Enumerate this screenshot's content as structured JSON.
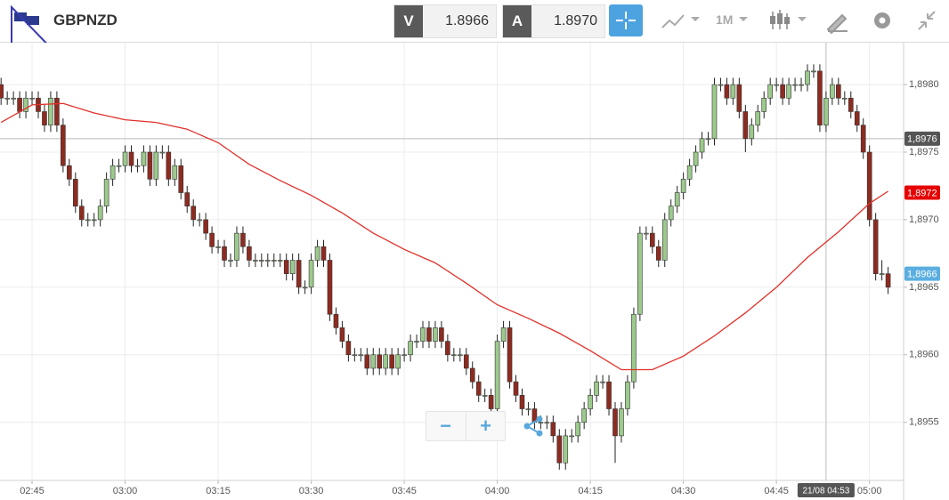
{
  "toolbar": {
    "symbol": "GBPNZD",
    "bid_label": "V",
    "bid": "1.8966",
    "ask_label": "A",
    "ask": "1.8970",
    "timeframe": "1M"
  },
  "zoom_controls": [
    "−",
    "+"
  ],
  "chart_data": {
    "type": "candlestick",
    "x": [
      160,
      161,
      162,
      163,
      164,
      165,
      166,
      167,
      168,
      169,
      170,
      171,
      172,
      173,
      174,
      175,
      176,
      177,
      178,
      179,
      180,
      181,
      182,
      183,
      184,
      185,
      186,
      187,
      188,
      189,
      190,
      191,
      192,
      193,
      194,
      195,
      196,
      197,
      198,
      199,
      200,
      201,
      202,
      203,
      204,
      205,
      206,
      207,
      208,
      209,
      210,
      211,
      212,
      213,
      214,
      215,
      216,
      217,
      218,
      219,
      220,
      221,
      222,
      223,
      224,
      225,
      226,
      227,
      228,
      229,
      230,
      231,
      232,
      233,
      234,
      235,
      236,
      237,
      238,
      239,
      240,
      241,
      242,
      243,
      244,
      245,
      246,
      247,
      248,
      249,
      250,
      251,
      252,
      253,
      254,
      255,
      256,
      257,
      258,
      259,
      260,
      261,
      262,
      263,
      264,
      265,
      266,
      267,
      268,
      269,
      270,
      271,
      272,
      273,
      274,
      275,
      276,
      277,
      278,
      279,
      280,
      281,
      282,
      283,
      284,
      285,
      286,
      287,
      288,
      289,
      290,
      291,
      292,
      293,
      294,
      295,
      296,
      297,
      298,
      299,
      300,
      301,
      302,
      303
    ],
    "open": [
      1.898,
      1.8979,
      1.8979,
      1.8979,
      1.8978,
      1.8979,
      1.8979,
      1.8978,
      1.8977,
      1.8979,
      1.8977,
      1.8974,
      1.8973,
      1.8971,
      1.897,
      1.897,
      1.897,
      1.8971,
      1.8973,
      1.8974,
      1.8974,
      1.8975,
      1.8974,
      1.8974,
      1.8975,
      1.8973,
      1.8975,
      1.8975,
      1.8973,
      1.8974,
      1.8972,
      1.8971,
      1.897,
      1.897,
      1.8969,
      1.8968,
      1.8968,
      1.8967,
      1.8967,
      1.8969,
      1.8968,
      1.8967,
      1.8967,
      1.8967,
      1.8967,
      1.8967,
      1.8967,
      1.8966,
      1.8967,
      1.8965,
      1.8965,
      1.8967,
      1.8968,
      1.8967,
      1.8963,
      1.8962,
      1.8961,
      1.896,
      1.896,
      1.896,
      1.8959,
      1.896,
      1.8959,
      1.896,
      1.8959,
      1.896,
      1.896,
      1.8961,
      1.8961,
      1.8962,
      1.8961,
      1.8962,
      1.8961,
      1.896,
      1.896,
      1.896,
      1.8959,
      1.8958,
      1.8957,
      1.8957,
      1.8956,
      1.8961,
      1.8962,
      1.8958,
      1.8957,
      1.8956,
      1.8956,
      1.8955,
      1.8955,
      1.8955,
      1.8954,
      1.8952,
      1.8954,
      1.8954,
      1.8955,
      1.8956,
      1.8957,
      1.8958,
      1.8958,
      1.8956,
      1.8954,
      1.8956,
      1.8958,
      1.8963,
      1.8969,
      1.8969,
      1.8968,
      1.8967,
      1.897,
      1.8971,
      1.8972,
      1.8973,
      1.8974,
      1.8975,
      1.8976,
      1.8976,
      1.898,
      1.898,
      1.8979,
      1.898,
      1.8978,
      1.8976,
      1.8977,
      1.8978,
      1.8979,
      1.898,
      1.898,
      1.8979,
      1.898,
      1.898,
      1.898,
      1.8981,
      1.8981,
      1.8977,
      1.8979,
      1.898,
      1.8979,
      1.8979,
      1.8978,
      1.8977,
      1.8975,
      1.897,
      1.8966,
      1.8966
    ],
    "high": [
      1.89805,
      1.89795,
      1.89795,
      1.89795,
      1.89795,
      1.89795,
      1.89795,
      1.89785,
      1.89795,
      1.89795,
      1.89775,
      1.89745,
      1.89735,
      1.89715,
      1.89705,
      1.89705,
      1.89715,
      1.89735,
      1.89745,
      1.89745,
      1.89755,
      1.89755,
      1.89745,
      1.89755,
      1.89755,
      1.89755,
      1.89755,
      1.89755,
      1.89745,
      1.89745,
      1.89725,
      1.89715,
      1.89705,
      1.89705,
      1.89695,
      1.89685,
      1.89685,
      1.89675,
      1.89695,
      1.89695,
      1.89685,
      1.89675,
      1.89675,
      1.89675,
      1.89675,
      1.89675,
      1.89675,
      1.89675,
      1.89675,
      1.89655,
      1.89675,
      1.89685,
      1.89685,
      1.89675,
      1.89635,
      1.89625,
      1.89615,
      1.89605,
      1.89605,
      1.89605,
      1.89605,
      1.89605,
      1.89605,
      1.89605,
      1.89605,
      1.89605,
      1.89615,
      1.89615,
      1.89625,
      1.89625,
      1.89625,
      1.89625,
      1.89615,
      1.89605,
      1.89605,
      1.89605,
      1.89595,
      1.89585,
      1.89575,
      1.89575,
      1.89615,
      1.89625,
      1.89625,
      1.89585,
      1.89575,
      1.89565,
      1.89565,
      1.89555,
      1.89555,
      1.89555,
      1.89545,
      1.89545,
      1.89545,
      1.89555,
      1.89565,
      1.89575,
      1.89585,
      1.89585,
      1.89585,
      1.89565,
      1.89565,
      1.89585,
      1.89635,
      1.89695,
      1.89695,
      1.89695,
      1.89685,
      1.89705,
      1.89715,
      1.89725,
      1.89735,
      1.89745,
      1.89755,
      1.89765,
      1.89765,
      1.89805,
      1.89805,
      1.89805,
      1.89805,
      1.89805,
      1.89785,
      1.89775,
      1.89785,
      1.89795,
      1.89805,
      1.89805,
      1.89805,
      1.89805,
      1.89805,
      1.89805,
      1.89815,
      1.89815,
      1.89815,
      1.89795,
      1.89805,
      1.89805,
      1.89795,
      1.89795,
      1.89785,
      1.89775,
      1.89755,
      1.89705,
      1.8967,
      1.89665
    ],
    "low": [
      1.89785,
      1.89785,
      1.89785,
      1.89775,
      1.89775,
      1.89785,
      1.89775,
      1.89765,
      1.89765,
      1.89765,
      1.89735,
      1.89725,
      1.89705,
      1.89695,
      1.89695,
      1.89695,
      1.89695,
      1.89705,
      1.89725,
      1.89735,
      1.89735,
      1.89735,
      1.89735,
      1.89735,
      1.89725,
      1.89725,
      1.89745,
      1.89725,
      1.89725,
      1.89715,
      1.89705,
      1.89695,
      1.89695,
      1.89685,
      1.89675,
      1.89675,
      1.89665,
      1.89665,
      1.89665,
      1.89675,
      1.89665,
      1.89665,
      1.89665,
      1.89665,
      1.89665,
      1.89665,
      1.89655,
      1.89655,
      1.89645,
      1.89645,
      1.89645,
      1.89665,
      1.89665,
      1.89625,
      1.89615,
      1.89605,
      1.89595,
      1.89595,
      1.89595,
      1.89585,
      1.89585,
      1.89585,
      1.89585,
      1.89585,
      1.89585,
      1.89595,
      1.89595,
      1.89605,
      1.89605,
      1.89605,
      1.89605,
      1.89605,
      1.89595,
      1.89595,
      1.89595,
      1.89585,
      1.89575,
      1.89565,
      1.89565,
      1.89555,
      1.89555,
      1.89605,
      1.89575,
      1.89565,
      1.89555,
      1.89555,
      1.89545,
      1.89545,
      1.89545,
      1.89535,
      1.89515,
      1.89515,
      1.89535,
      1.89535,
      1.89545,
      1.89555,
      1.89565,
      1.89575,
      1.89555,
      1.8952,
      1.89535,
      1.89555,
      1.89575,
      1.89625,
      1.89685,
      1.89675,
      1.89665,
      1.89665,
      1.89695,
      1.89705,
      1.89715,
      1.89725,
      1.89735,
      1.89745,
      1.89755,
      1.89755,
      1.89795,
      1.89785,
      1.89785,
      1.89775,
      1.8975,
      1.89755,
      1.89765,
      1.89775,
      1.89785,
      1.89795,
      1.89785,
      1.89785,
      1.89795,
      1.89795,
      1.89795,
      1.89805,
      1.89765,
      1.89765,
      1.89785,
      1.89785,
      1.89785,
      1.89775,
      1.89765,
      1.89745,
      1.89695,
      1.89655,
      1.89655,
      1.89645
    ],
    "close": [
      1.8979,
      1.8979,
      1.8979,
      1.8978,
      1.8979,
      1.8979,
      1.8978,
      1.8977,
      1.8979,
      1.8977,
      1.8974,
      1.8973,
      1.8971,
      1.897,
      1.897,
      1.897,
      1.8971,
      1.8973,
      1.8974,
      1.8974,
      1.8975,
      1.8974,
      1.8974,
      1.8975,
      1.8973,
      1.8975,
      1.8975,
      1.8973,
      1.8974,
      1.8972,
      1.8971,
      1.897,
      1.897,
      1.8969,
      1.8968,
      1.8968,
      1.8967,
      1.8967,
      1.8969,
      1.8968,
      1.8967,
      1.8967,
      1.8967,
      1.8967,
      1.8967,
      1.8967,
      1.8966,
      1.8967,
      1.8965,
      1.8965,
      1.8967,
      1.8968,
      1.8967,
      1.8963,
      1.8962,
      1.8961,
      1.896,
      1.896,
      1.896,
      1.8959,
      1.896,
      1.8959,
      1.896,
      1.8959,
      1.896,
      1.896,
      1.8961,
      1.8961,
      1.8962,
      1.8961,
      1.8962,
      1.8961,
      1.896,
      1.896,
      1.896,
      1.8959,
      1.8958,
      1.8957,
      1.8957,
      1.8956,
      1.8961,
      1.8962,
      1.8958,
      1.8957,
      1.8956,
      1.8956,
      1.8955,
      1.8955,
      1.8955,
      1.8954,
      1.8952,
      1.8954,
      1.8954,
      1.8955,
      1.8956,
      1.8957,
      1.8958,
      1.8958,
      1.8956,
      1.8954,
      1.8956,
      1.8958,
      1.8963,
      1.8969,
      1.8969,
      1.8968,
      1.8967,
      1.897,
      1.8971,
      1.8972,
      1.8973,
      1.8974,
      1.8975,
      1.8976,
      1.8976,
      1.898,
      1.898,
      1.8979,
      1.898,
      1.8978,
      1.8976,
      1.8977,
      1.8978,
      1.8979,
      1.898,
      1.898,
      1.8979,
      1.898,
      1.898,
      1.898,
      1.8981,
      1.8981,
      1.8977,
      1.8979,
      1.898,
      1.8979,
      1.8979,
      1.8978,
      1.8977,
      1.8975,
      1.897,
      1.8966,
      1.8966,
      1.8965
    ],
    "up_color": "#9cc98c",
    "down_color": "#8e2b20",
    "overlay": {
      "color": "#e0302a",
      "x": [
        160,
        165,
        170,
        175,
        180,
        185,
        190,
        195,
        200,
        205,
        210,
        215,
        220,
        225,
        230,
        235,
        240,
        245,
        250,
        255,
        260,
        265,
        270,
        275,
        280,
        285,
        290,
        295,
        300,
        303
      ],
      "values": [
        1.89772,
        1.89785,
        1.89786,
        1.89779,
        1.89774,
        1.89772,
        1.89767,
        1.89757,
        1.89741,
        1.89729,
        1.89718,
        1.89705,
        1.8969,
        1.89678,
        1.89668,
        1.89653,
        1.89637,
        1.89627,
        1.89616,
        1.89603,
        1.89589,
        1.89589,
        1.89599,
        1.89614,
        1.89631,
        1.8965,
        1.89672,
        1.89691,
        1.89712,
        1.89721
      ]
    },
    "xlim": [
      159.83,
      305.5
    ],
    "ylim": [
      1.89507,
      1.89831
    ],
    "xticks": [
      {
        "value": 165,
        "label": "02:45"
      },
      {
        "value": 180,
        "label": "03:00"
      },
      {
        "value": 195,
        "label": "03:15"
      },
      {
        "value": 210,
        "label": "03:30"
      },
      {
        "value": 225,
        "label": "03:45"
      },
      {
        "value": 240,
        "label": "04:00"
      },
      {
        "value": 255,
        "label": "04:15"
      },
      {
        "value": 270,
        "label": "04:30"
      },
      {
        "value": 285,
        "label": "04:45"
      },
      {
        "value": 300,
        "label": "05:00"
      }
    ],
    "yticks": [
      {
        "value": 1.8955,
        "label": "1,8955"
      },
      {
        "value": 1.896,
        "label": "1,8960"
      },
      {
        "value": 1.8965,
        "label": "1,8965"
      },
      {
        "value": 1.897,
        "label": "1,8970"
      },
      {
        "value": 1.8975,
        "label": "1,8975"
      },
      {
        "value": 1.898,
        "label": "1,8980"
      }
    ],
    "grid": true,
    "crosshair": {
      "x": 293,
      "x_label": "21/08 04:53",
      "y": 1.8976,
      "y_label": "1,8976",
      "color": "#555555"
    },
    "price_labels": [
      {
        "value": 1.8972,
        "label": "1,8972",
        "color": "#e60000"
      },
      {
        "value": 1.8966,
        "label": "1,8966",
        "color": "#5aaee0"
      }
    ]
  }
}
